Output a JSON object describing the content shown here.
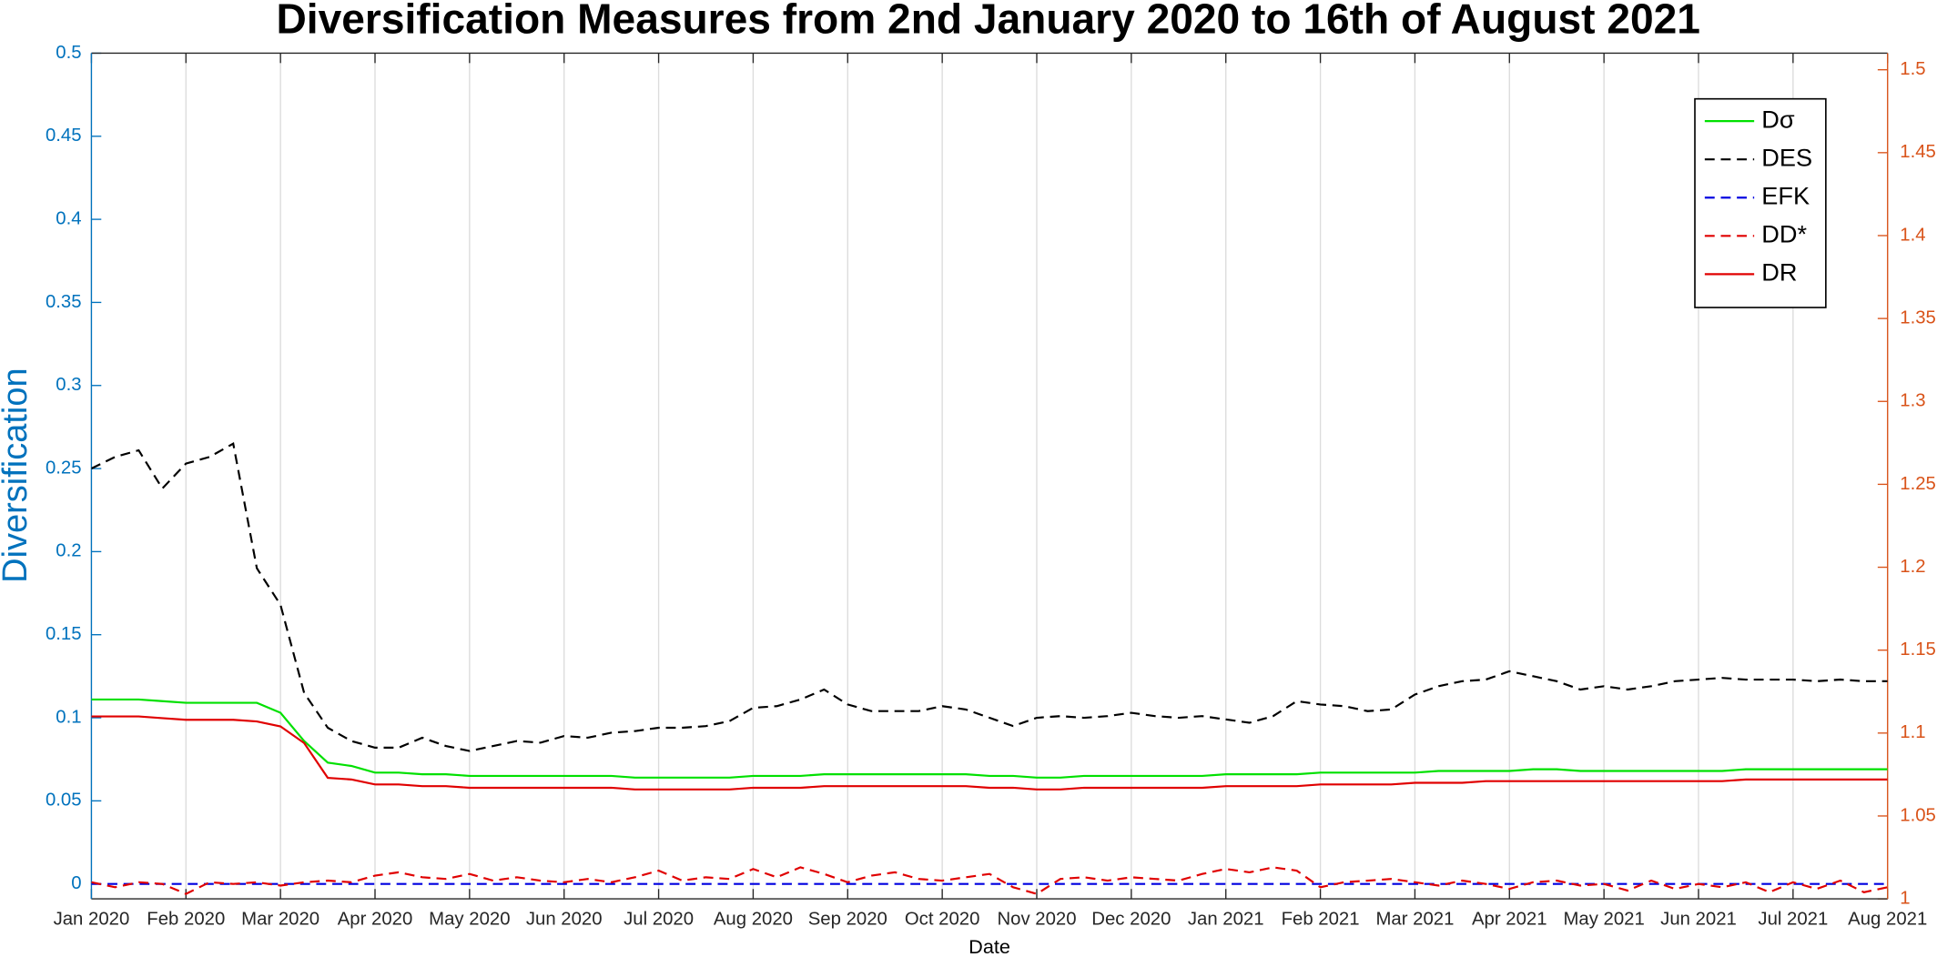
{
  "chart_data": {
    "type": "line",
    "title": "Diversification Measures from 2nd January 2020 to 16th of August 2021",
    "x_label": "Date",
    "y_label": "Diversification",
    "x": [
      0,
      0.25,
      0.5,
      0.75,
      1,
      1.25,
      1.5,
      1.75,
      2,
      2.25,
      2.5,
      2.75,
      3,
      3.25,
      3.5,
      3.75,
      4,
      4.25,
      4.5,
      4.75,
      5,
      5.25,
      5.5,
      5.75,
      6,
      6.25,
      6.5,
      6.75,
      7,
      7.25,
      7.5,
      7.75,
      8,
      8.25,
      8.5,
      8.75,
      9,
      9.25,
      9.5,
      9.75,
      10,
      10.25,
      10.5,
      10.75,
      11,
      11.25,
      11.5,
      11.75,
      12,
      12.25,
      12.5,
      12.75,
      13,
      13.25,
      13.5,
      13.75,
      14,
      14.25,
      14.5,
      14.75,
      15,
      15.25,
      15.5,
      15.75,
      16,
      16.25,
      16.5,
      16.75,
      17,
      17.25,
      17.5,
      17.75,
      18,
      18.25,
      18.5,
      18.75,
      19
    ],
    "xlim": [
      0,
      19
    ],
    "xticks": [
      {
        "value": 0,
        "label": "Jan 2020"
      },
      {
        "value": 1,
        "label": "Feb 2020"
      },
      {
        "value": 2,
        "label": "Mar 2020"
      },
      {
        "value": 3,
        "label": "Apr 2020"
      },
      {
        "value": 4,
        "label": "May 2020"
      },
      {
        "value": 5,
        "label": "Jun 2020"
      },
      {
        "value": 6,
        "label": "Jul 2020"
      },
      {
        "value": 7,
        "label": "Aug 2020"
      },
      {
        "value": 8,
        "label": "Sep 2020"
      },
      {
        "value": 9,
        "label": "Oct 2020"
      },
      {
        "value": 10,
        "label": "Nov 2020"
      },
      {
        "value": 11,
        "label": "Dec 2020"
      },
      {
        "value": 12,
        "label": "Jan 2021"
      },
      {
        "value": 13,
        "label": "Feb 2021"
      },
      {
        "value": 14,
        "label": "Mar 2021"
      },
      {
        "value": 15,
        "label": "Apr 2021"
      },
      {
        "value": 16,
        "label": "May 2021"
      },
      {
        "value": 17,
        "label": "Jun 2021"
      },
      {
        "value": 18,
        "label": "Jul 2021"
      },
      {
        "value": 19,
        "label": "Aug 2021"
      }
    ],
    "ylim": [
      -0.009,
      0.5
    ],
    "yticks": [
      0,
      0.05,
      0.1,
      0.15,
      0.2,
      0.25,
      0.3,
      0.35,
      0.4,
      0.45,
      0.5
    ],
    "y2lim": [
      1,
      1.51
    ],
    "y2ticks": [
      1,
      1.05,
      1.1,
      1.15,
      1.2,
      1.25,
      1.3,
      1.35,
      1.4,
      1.45,
      1.5
    ],
    "grid": "x",
    "legend": "upper right",
    "y_color": "#0072bd",
    "y2_color": "#d95319",
    "series": [
      {
        "name": "Dσ",
        "color": "#00e000",
        "line_style": "solid",
        "values": [
          0.111,
          0.111,
          0.111,
          0.11,
          0.109,
          0.109,
          0.109,
          0.109,
          0.103,
          0.086,
          0.073,
          0.071,
          0.067,
          0.067,
          0.066,
          0.066,
          0.065,
          0.065,
          0.065,
          0.065,
          0.065,
          0.065,
          0.065,
          0.064,
          0.064,
          0.064,
          0.064,
          0.064,
          0.065,
          0.065,
          0.065,
          0.066,
          0.066,
          0.066,
          0.066,
          0.066,
          0.066,
          0.066,
          0.065,
          0.065,
          0.064,
          0.064,
          0.065,
          0.065,
          0.065,
          0.065,
          0.065,
          0.065,
          0.066,
          0.066,
          0.066,
          0.066,
          0.067,
          0.067,
          0.067,
          0.067,
          0.067,
          0.068,
          0.068,
          0.068,
          0.068,
          0.069,
          0.069,
          0.068,
          0.068,
          0.068,
          0.068,
          0.068,
          0.068,
          0.068,
          0.069,
          0.069,
          0.069,
          0.069,
          0.069,
          0.069,
          0.069
        ]
      },
      {
        "name": "DES",
        "color": "#000000",
        "line_style": "dashed",
        "values": [
          0.25,
          0.257,
          0.261,
          0.238,
          0.253,
          0.257,
          0.265,
          0.19,
          0.168,
          0.115,
          0.094,
          0.086,
          0.082,
          0.082,
          0.088,
          0.083,
          0.08,
          0.083,
          0.086,
          0.085,
          0.089,
          0.088,
          0.091,
          0.092,
          0.094,
          0.094,
          0.095,
          0.098,
          0.106,
          0.107,
          0.111,
          0.117,
          0.108,
          0.104,
          0.104,
          0.104,
          0.107,
          0.105,
          0.1,
          0.095,
          0.1,
          0.101,
          0.1,
          0.101,
          0.103,
          0.101,
          0.1,
          0.101,
          0.099,
          0.097,
          0.101,
          0.11,
          0.108,
          0.107,
          0.104,
          0.105,
          0.114,
          0.119,
          0.122,
          0.123,
          0.128,
          0.125,
          0.122,
          0.117,
          0.119,
          0.117,
          0.119,
          0.122,
          0.123,
          0.124,
          0.123,
          0.123,
          0.123,
          0.122,
          0.123,
          0.122,
          0.122
        ]
      },
      {
        "name": "EFK",
        "color": "#0000e0",
        "line_style": "dashed",
        "values": [
          0,
          0,
          0,
          0,
          0,
          0,
          0,
          0,
          0,
          0,
          0,
          0,
          0,
          0,
          0,
          0,
          0,
          0,
          0,
          0,
          0,
          0,
          0,
          0,
          0,
          0,
          0,
          0,
          0,
          0,
          0,
          0,
          0,
          0,
          0,
          0,
          0,
          0,
          0,
          0,
          0,
          0,
          0,
          0,
          0,
          0,
          0,
          0,
          0,
          0,
          0,
          0,
          0,
          0,
          0,
          0,
          0,
          0,
          0,
          0,
          0,
          0,
          0,
          0,
          0,
          0,
          0,
          0,
          0,
          0,
          0,
          0,
          0,
          0,
          0,
          0,
          0
        ]
      },
      {
        "name": "DD*",
        "color": "#e00000",
        "line_style": "dashed",
        "values": [
          0.001,
          -0.002,
          0.001,
          0.0,
          -0.006,
          0.001,
          0.0,
          0.001,
          -0.001,
          0.001,
          0.002,
          0.001,
          0.005,
          0.007,
          0.004,
          0.003,
          0.006,
          0.002,
          0.004,
          0.002,
          0.001,
          0.003,
          0.001,
          0.004,
          0.008,
          0.002,
          0.004,
          0.003,
          0.009,
          0.004,
          0.01,
          0.006,
          0.001,
          0.005,
          0.007,
          0.003,
          0.002,
          0.004,
          0.006,
          -0.002,
          -0.006,
          0.003,
          0.004,
          0.002,
          0.004,
          0.003,
          0.002,
          0.006,
          0.009,
          0.007,
          0.01,
          0.008,
          -0.002,
          0.001,
          0.002,
          0.003,
          0.001,
          -0.001,
          0.002,
          0.0,
          -0.003,
          0.001,
          0.002,
          -0.001,
          0.0,
          -0.004,
          0.002,
          -0.003,
          0.0,
          -0.002,
          0.001,
          -0.005,
          0.001,
          -0.003,
          0.002,
          -0.005,
          -0.002
        ]
      },
      {
        "name": "DR",
        "color": "#e00000",
        "line_style": "solid",
        "axis": "y2",
        "values": [
          1.11,
          1.11,
          1.11,
          1.109,
          1.108,
          1.108,
          1.108,
          1.107,
          1.104,
          1.094,
          1.073,
          1.072,
          1.069,
          1.069,
          1.068,
          1.068,
          1.067,
          1.067,
          1.067,
          1.067,
          1.067,
          1.067,
          1.067,
          1.066,
          1.066,
          1.066,
          1.066,
          1.066,
          1.067,
          1.067,
          1.067,
          1.068,
          1.068,
          1.068,
          1.068,
          1.068,
          1.068,
          1.068,
          1.067,
          1.067,
          1.066,
          1.066,
          1.067,
          1.067,
          1.067,
          1.067,
          1.067,
          1.067,
          1.068,
          1.068,
          1.068,
          1.068,
          1.069,
          1.069,
          1.069,
          1.069,
          1.07,
          1.07,
          1.07,
          1.071,
          1.071,
          1.071,
          1.071,
          1.071,
          1.071,
          1.071,
          1.071,
          1.071,
          1.071,
          1.071,
          1.072,
          1.072,
          1.072,
          1.072,
          1.072,
          1.072,
          1.072
        ]
      }
    ]
  }
}
